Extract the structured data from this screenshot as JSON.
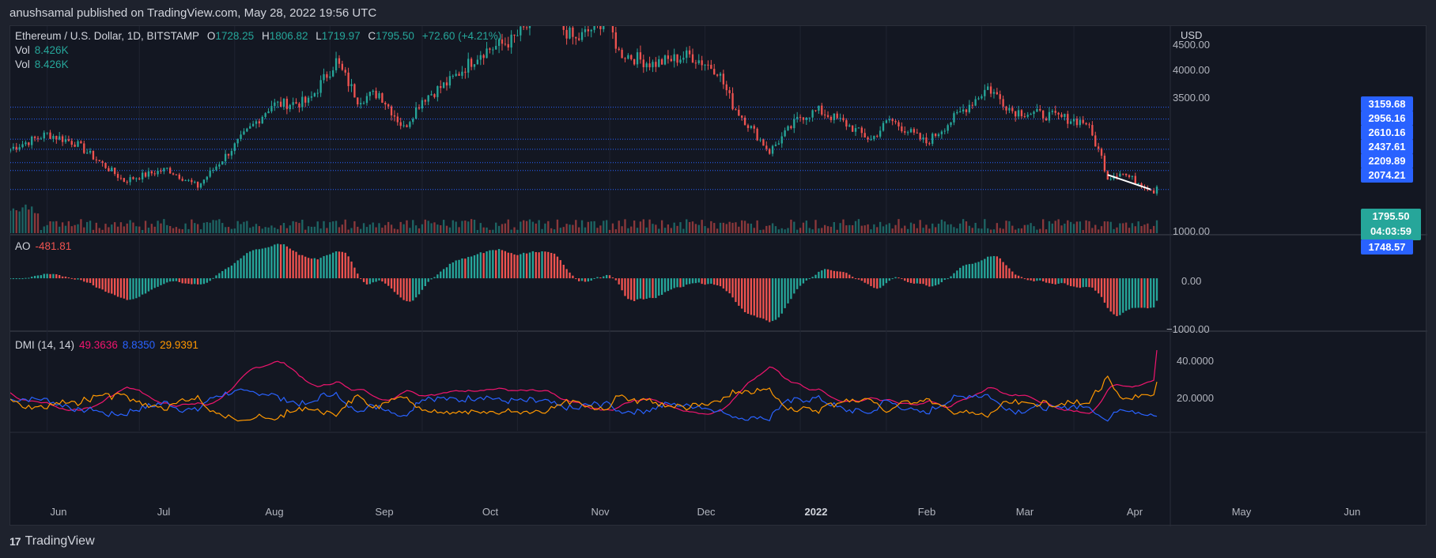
{
  "publisher": "anushsamal published on TradingView.com, May 28, 2022 19:56 UTC",
  "brand": "TradingView",
  "brand_mark": "17",
  "symbol": {
    "title": "Ethereum / U.S. Dollar, 1D, BITSTAMP",
    "open_label": "O",
    "open": "1728.25",
    "high_label": "H",
    "high": "1806.82",
    "low_label": "L",
    "low": "1719.97",
    "close_label": "C",
    "close": "1795.50",
    "change": "+72.60 (+4.21%)"
  },
  "vol_rows": [
    {
      "label": "Vol",
      "value": "8.426K"
    },
    {
      "label": "Vol",
      "value": "8.426K"
    }
  ],
  "ao": {
    "label": "AO",
    "value": "-481.81"
  },
  "dmi": {
    "label": "DMI (14, 14)",
    "adx": "49.3636",
    "plus_di": "8.8350",
    "minus_di": "29.9391"
  },
  "currency": "USD",
  "price_axis_labels": [
    "4500.00",
    "4000.00",
    "3500.00",
    "1000.00"
  ],
  "ao_axis_labels": [
    "0.00",
    "−1000.00"
  ],
  "dmi_axis_labels": [
    "40.0000",
    "20.0000"
  ],
  "levels": [
    "3159.68",
    "2956.16",
    "2610.16",
    "2437.61",
    "2209.89",
    "2074.21",
    "1748.57"
  ],
  "current_price": {
    "price": "1795.50",
    "countdown": "04:03:59"
  },
  "x_labels": [
    "Jun",
    "Jul",
    "Aug",
    "Sep",
    "Oct",
    "Nov",
    "Dec",
    "2022",
    "Feb",
    "Mar",
    "Apr",
    "May",
    "Jun"
  ],
  "colors": {
    "up": "#26a69a",
    "down": "#ef5350",
    "level": "#2962ff",
    "adx": "#f0156e",
    "plus_di": "#2962ff",
    "minus_di": "#ff9800",
    "background": "#131722"
  },
  "chart_data": {
    "type": "candlestick",
    "title": "Ethereum / U.S. Dollar, 1D, BITSTAMP",
    "ylabel": "USD",
    "ylim": [
      1000,
      4550
    ],
    "x_ticks": [
      "Jun",
      "Jul",
      "Aug",
      "Sep",
      "Oct",
      "Nov",
      "Dec",
      "2022",
      "Feb",
      "Mar",
      "Apr",
      "May",
      "Jun"
    ],
    "price_path_months": [
      "2021-05-20",
      "2021-06-01",
      "2021-06-10",
      "2021-06-26",
      "2021-07-10",
      "2021-07-20",
      "2021-08-01",
      "2021-08-13",
      "2021-08-25",
      "2021-09-03",
      "2021-09-10",
      "2021-09-17",
      "2021-09-25",
      "2021-10-01",
      "2021-10-10",
      "2021-10-20",
      "2021-10-30",
      "2021-11-10",
      "2021-11-20",
      "2021-11-30",
      "2021-12-04",
      "2021-12-15",
      "2021-12-27",
      "2022-01-05",
      "2022-01-10",
      "2022-01-22",
      "2022-02-01",
      "2022-02-07",
      "2022-02-15",
      "2022-02-24",
      "2022-03-02",
      "2022-03-14",
      "2022-03-30",
      "2022-04-03",
      "2022-04-11",
      "2022-04-25",
      "2022-05-05",
      "2022-05-10",
      "2022-05-12",
      "2022-05-16",
      "2022-05-27",
      "2022-05-28"
    ],
    "close_path": [
      2450,
      2700,
      2550,
      1900,
      2100,
      1800,
      2500,
      3200,
      3250,
      3950,
      3300,
      3400,
      2800,
      3300,
      3600,
      4100,
      4300,
      4800,
      4300,
      4700,
      4100,
      3900,
      4050,
      3800,
      3200,
      2400,
      3000,
      3100,
      2900,
      2600,
      2950,
      2550,
      3300,
      3500,
      3100,
      3000,
      2900,
      2300,
      1950,
      2050,
      1720,
      1795.5
    ],
    "levels": [
      3159.68,
      2956.16,
      2610.16,
      2437.61,
      2209.89,
      2074.21,
      1748.57
    ],
    "current_price": 1795.5,
    "indicators": {
      "AO": {
        "last": -481.81,
        "ylim": [
          -1100,
          900
        ],
        "ticks": [
          0,
          -1000
        ]
      },
      "DMI": {
        "adx": 49.3636,
        "plus_di": 8.835,
        "minus_di": 29.9391,
        "ylim": [
          0,
          60
        ],
        "ticks": [
          40,
          20
        ]
      }
    }
  }
}
